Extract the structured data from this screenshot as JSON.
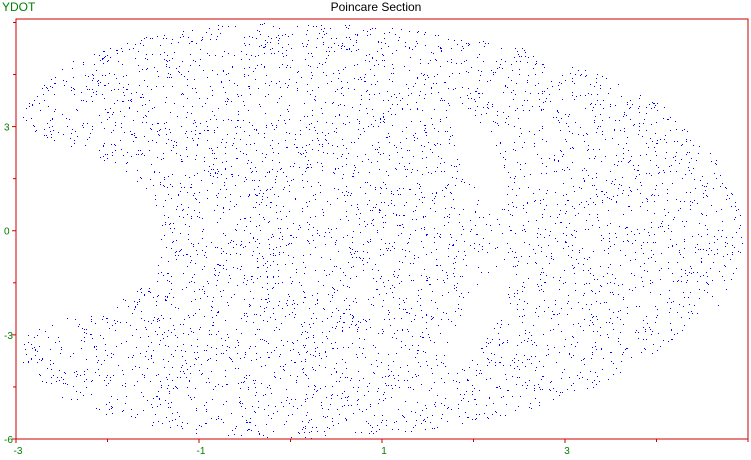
{
  "chart_data": {
    "type": "scatter",
    "title": "Poincare Section",
    "xlabel": "",
    "ylabel": "YDOT",
    "xlim": [
      -3,
      5
    ],
    "ylim": [
      -6,
      6.1
    ],
    "x_ticks": [
      -3,
      -1,
      1,
      3
    ],
    "y_ticks": [
      -6,
      -3,
      0,
      3
    ],
    "grid": false,
    "series": [
      {
        "marker_color": "#0000ff",
        "description_points": "dense chaotic sea of points filling a crescent / bean-shaped region",
        "region_outline": [
          [
            -2.9,
            3.8
          ],
          [
            -2.4,
            4.9
          ],
          [
            -1.6,
            5.6
          ],
          [
            -0.8,
            5.95
          ],
          [
            0.3,
            6.0
          ],
          [
            1.4,
            5.8
          ],
          [
            2.4,
            5.4
          ],
          [
            3.3,
            4.6
          ],
          [
            4.1,
            3.6
          ],
          [
            4.6,
            2.3
          ],
          [
            4.9,
            0.8
          ],
          [
            4.95,
            -0.6
          ],
          [
            4.7,
            -2.1
          ],
          [
            4.1,
            -3.4
          ],
          [
            3.3,
            -4.5
          ],
          [
            2.4,
            -5.3
          ],
          [
            1.3,
            -5.8
          ],
          [
            0.2,
            -6.0
          ],
          [
            -0.9,
            -5.9
          ],
          [
            -1.8,
            -5.5
          ],
          [
            -2.5,
            -4.8
          ],
          [
            -2.95,
            -3.8
          ],
          [
            -2.9,
            -3.0
          ],
          [
            -2.6,
            -2.6
          ],
          [
            -2.0,
            -2.2
          ],
          [
            -1.5,
            -1.4
          ],
          [
            -1.4,
            -0.5
          ],
          [
            -1.45,
            0.2
          ],
          [
            -1.5,
            1.0
          ],
          [
            -1.9,
            1.9
          ],
          [
            -2.5,
            2.5
          ],
          [
            -2.95,
            3.0
          ]
        ],
        "islands": [
          {
            "center": [
              2.05,
              2.2
            ],
            "rx": 0.5,
            "ry": 0.16,
            "angle_deg": -65
          },
          {
            "center": [
              2.05,
              -2.5
            ],
            "rx": 0.55,
            "ry": 0.16,
            "angle_deg": 62
          }
        ]
      }
    ],
    "frame_color": "#cc0000",
    "axis_label_color": "#008000"
  }
}
